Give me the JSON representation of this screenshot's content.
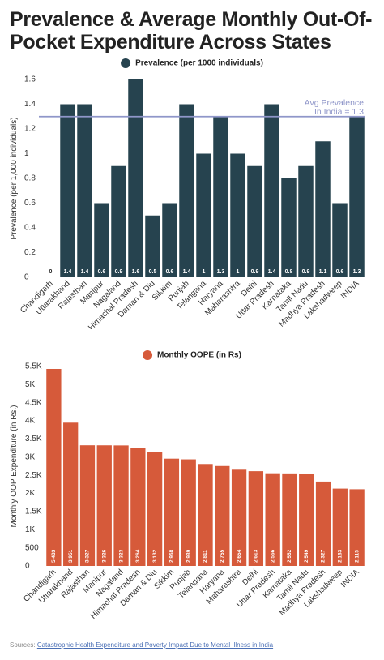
{
  "title": "Prevalence & Average Monthly Out-Of-Pocket Expenditure Across States",
  "source_label": "Sources:",
  "source_link_text": "Catastrophic Health Expenditure and Poverty Impact Due to Mental Illness in India",
  "colors": {
    "prevalence": "#26434f",
    "oope": "#d65a3a",
    "avg_line": "#8f96c9"
  },
  "chart_data": [
    {
      "type": "bar",
      "legend": "Prevalence (per 1000 individuals)",
      "legend_position": "top-center",
      "ylabel": "Prevalence (per 1,000 individuals)",
      "xlabel": "",
      "ylim": [
        0,
        1.6
      ],
      "yticks": [
        "0",
        "0.2",
        "0.4",
        "0.6",
        "0.8",
        "1",
        "1.2",
        "1.4",
        "1.6"
      ],
      "grid": false,
      "categories": [
        "Chandigarh",
        "Uttarakhand",
        "Rajasthan",
        "Manipur",
        "Nagaland",
        "Himachal Pradesh",
        "Daman & Diu",
        "Sikkim",
        "Punjab",
        "Telangana",
        "Haryana",
        "Maharashtra",
        "Delhi",
        "Uttar Pradesh",
        "Karnataka",
        "Tamil Nadu",
        "Madhya Pradesh",
        "Lakshadweep",
        "INDIA"
      ],
      "values": [
        0,
        1.4,
        1.4,
        0.6,
        0.9,
        1.6,
        0.5,
        0.6,
        1.4,
        1,
        1.3,
        1,
        0.9,
        1.4,
        0.8,
        0.9,
        1.1,
        0.6,
        1.3
      ],
      "value_labels": [
        "0",
        "1.4",
        "1.4",
        "0.6",
        "0.9",
        "1.6",
        "0.5",
        "0.6",
        "1.4",
        "1",
        "1.3",
        "1",
        "0.9",
        "1.4",
        "0.8",
        "0.9",
        "1.1",
        "0.6",
        "1.3"
      ],
      "reference_line": {
        "value": 1.3,
        "label_line1": "Avg Prevalence",
        "label_line2": "In India = 1.3"
      }
    },
    {
      "type": "bar",
      "legend": "Monthly OOPE (in Rs)",
      "legend_position": "top-center",
      "ylabel": "Monthly OOP Expenditure (in Rs.)",
      "xlabel": "",
      "ylim": [
        0,
        5500
      ],
      "yticks": [
        "0",
        "500",
        "1K",
        "1.5K",
        "2K",
        "2.5K",
        "3K",
        "3.5K",
        "4K",
        "4.5K",
        "5K",
        "5.5K"
      ],
      "grid": false,
      "categories": [
        "Chandigarh",
        "Uttarakhand",
        "Rajasthan",
        "Manipur",
        "Nagaland",
        "Himachal Pradesh",
        "Daman & Diu",
        "Sikkim",
        "Punjab",
        "Telangana",
        "Haryana",
        "Maharashtra",
        "Delhi",
        "Uttar Pradesh",
        "Karnataka",
        "Tamil Nadu",
        "Madhya Pradesh",
        "Lakshadweep",
        "INDIA"
      ],
      "values": [
        5433,
        3951,
        3327,
        3326,
        3323,
        3264,
        3132,
        2958,
        2939,
        2811,
        2755,
        2654,
        2613,
        2556,
        2552,
        2549,
        2327,
        2133,
        2115
      ],
      "value_labels": [
        "5,433",
        "3,951",
        "3,327",
        "3,326",
        "3,323",
        "3,264",
        "3,132",
        "2,958",
        "2,939",
        "2,811",
        "2,755",
        "2,654",
        "2,613",
        "2,556",
        "2,552",
        "2,549",
        "2,327",
        "2,133",
        "2,115"
      ]
    }
  ]
}
